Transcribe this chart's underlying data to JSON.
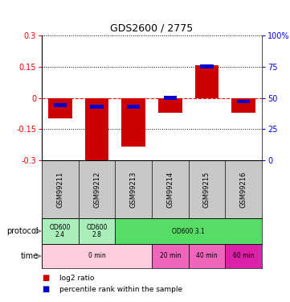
{
  "title": "GDS2600 / 2775",
  "samples": [
    "GSM99211",
    "GSM99212",
    "GSM99213",
    "GSM99214",
    "GSM99215",
    "GSM99216"
  ],
  "log2_ratio": [
    -0.1,
    -0.3,
    -0.235,
    -0.07,
    0.155,
    -0.07
  ],
  "percentile_rank": [
    44,
    43,
    43,
    50,
    75,
    47
  ],
  "ylim": [
    -0.3,
    0.3
  ],
  "yticks_left": [
    -0.3,
    -0.15,
    0,
    0.15,
    0.3
  ],
  "yticks_right": [
    0,
    25,
    50,
    75,
    100
  ],
  "bar_color_red": "#CC0000",
  "bar_color_blue": "#0000CC",
  "background_color": "#FFFFFF",
  "header_bg": "#C8C8C8",
  "protocol_defs": [
    [
      0,
      0,
      "OD600\n2.4",
      "#AAEEBB"
    ],
    [
      1,
      1,
      "OD600\n2.8",
      "#AAEEBB"
    ],
    [
      2,
      5,
      "OD600 3.1",
      "#55DD66"
    ]
  ],
  "time_defs": [
    [
      0,
      2,
      "0 min",
      "#FFCCDD"
    ],
    [
      3,
      3,
      "20 min",
      "#EE66BB"
    ],
    [
      4,
      4,
      "40 min",
      "#EE66BB"
    ],
    [
      5,
      5,
      "60 min",
      "#DD22AA"
    ]
  ],
  "legend_red_label": "log2 ratio",
  "legend_blue_label": "percentile rank within the sample"
}
